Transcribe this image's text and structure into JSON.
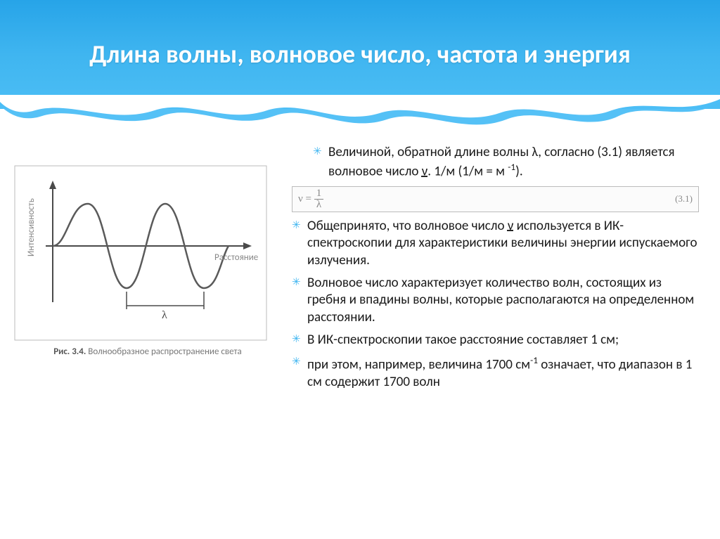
{
  "slide": {
    "title": "Длина волны, волновое число, частота и энергия"
  },
  "figure": {
    "y_axis_label": "Интенсивность",
    "x_axis_label": "Расстояние",
    "lambda_label": "λ",
    "caption_prefix": "Рис. 3.4.",
    "caption_text": "Волнообразное распространение света",
    "wave_color": "#5a5a5a",
    "axis_color": "#4a4a4a",
    "text_color": "#888888",
    "border_color": "#bbbbbb"
  },
  "formula": {
    "expression": "ν = 1 / λ",
    "eq_number": "(3.1)"
  },
  "bullets": [
    {
      "html": "Величиной, обратной длине волны λ, согласно (3.1) является волновое число <span class='underline-dashed'>ν</span>. 1/м (1/м = м <sup>-1</sup>).",
      "indent": true,
      "after_formula": false
    },
    {
      "html": "Общепринято, что волновое число <span class='underline-dashed'>ν</span> используется в ИК-спектроскопии для характеристики величины энергии испускаемого излучения.",
      "indent": false,
      "after_formula": true
    },
    {
      "html": "Волновое число характеризует количество волн, состоящих из гребня и впадины волны, которые располагаются на определенном расстоянии.",
      "indent": false,
      "after_formula": false
    },
    {
      "html": "В ИК-спектроскопии такое расстояние составляет 1 см;",
      "indent": false,
      "after_formula": false
    },
    {
      "html": "при этом, например, величина 1700 см<sup>-1</sup> означает, что диапазон в 1 см содержит 1700 волн",
      "indent": false,
      "after_formula": false
    }
  ],
  "colors": {
    "header_gradient_top": "#27a4e8",
    "header_gradient_bottom": "#4cbef5",
    "bullet_marker": "#3fb5f0",
    "body_text": "#1a1a1a"
  }
}
